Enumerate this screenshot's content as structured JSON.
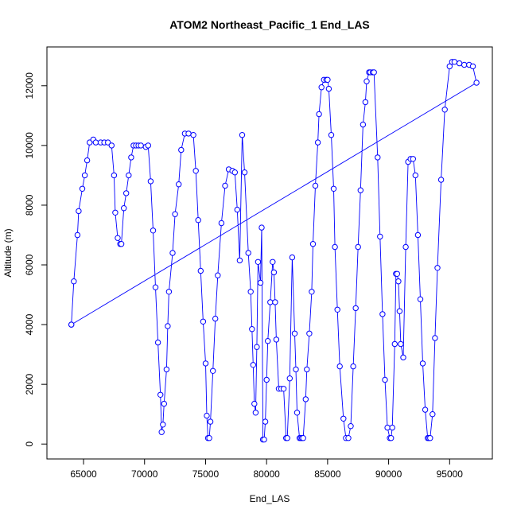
{
  "chart_data": {
    "type": "line",
    "title": "ATOM2 Northeast_Pacific_1 End_LAS",
    "xlabel": "End_LAS",
    "ylabel": "Altitude (m)",
    "xlim": [
      62000,
      98500
    ],
    "ylim": [
      -500,
      13300
    ],
    "xticks": [
      65000,
      70000,
      75000,
      80000,
      85000,
      90000,
      95000
    ],
    "yticks": [
      0,
      2000,
      4000,
      6000,
      8000,
      10000,
      12000
    ],
    "series_color": "#0000ff",
    "series": [
      {
        "points": [
          [
            64000,
            4000
          ],
          [
            64200,
            5450
          ],
          [
            64500,
            7000
          ],
          [
            64600,
            7800
          ],
          [
            64900,
            8550
          ],
          [
            65100,
            9000
          ],
          [
            65300,
            9500
          ],
          [
            65500,
            10100
          ],
          [
            65800,
            10200
          ],
          [
            66000,
            10100
          ],
          [
            66400,
            10100
          ],
          [
            66700,
            10100
          ],
          [
            67000,
            10100
          ],
          [
            67300,
            10000
          ],
          [
            67500,
            9000
          ],
          [
            67600,
            7750
          ],
          [
            67800,
            6900
          ],
          [
            68000,
            6700
          ],
          [
            68100,
            6700
          ],
          [
            68300,
            7900
          ],
          [
            68500,
            8400
          ],
          [
            68700,
            9000
          ],
          [
            68900,
            9600
          ],
          [
            69100,
            10000
          ],
          [
            69300,
            10000
          ],
          [
            69500,
            10000
          ],
          [
            69700,
            10000
          ],
          [
            70100,
            9950
          ],
          [
            70300,
            10000
          ],
          [
            70500,
            8800
          ],
          [
            70700,
            7150
          ],
          [
            70900,
            5250
          ],
          [
            71100,
            3400
          ],
          [
            71300,
            1650
          ],
          [
            71400,
            400
          ],
          [
            71500,
            650
          ],
          [
            71600,
            1350
          ],
          [
            71800,
            2500
          ],
          [
            71900,
            3950
          ],
          [
            72000,
            5100
          ],
          [
            72300,
            6400
          ],
          [
            72500,
            7700
          ],
          [
            72800,
            8700
          ],
          [
            73000,
            9850
          ],
          [
            73300,
            10400
          ],
          [
            73600,
            10400
          ],
          [
            74000,
            10350
          ],
          [
            74200,
            9150
          ],
          [
            74400,
            7500
          ],
          [
            74600,
            5800
          ],
          [
            74800,
            4100
          ],
          [
            75000,
            2700
          ],
          [
            75100,
            950
          ],
          [
            75200,
            200
          ],
          [
            75300,
            200
          ],
          [
            75400,
            750
          ],
          [
            75600,
            2450
          ],
          [
            75800,
            4200
          ],
          [
            76000,
            5650
          ],
          [
            76300,
            7400
          ],
          [
            76600,
            8650
          ],
          [
            76900,
            9200
          ],
          [
            77200,
            9150
          ],
          [
            77400,
            9100
          ],
          [
            77600,
            7850
          ],
          [
            77800,
            6150
          ],
          [
            78000,
            10350
          ],
          [
            78200,
            9100
          ],
          [
            78500,
            6400
          ],
          [
            78700,
            5100
          ],
          [
            78800,
            3850
          ],
          [
            78900,
            2650
          ],
          [
            79000,
            1350
          ],
          [
            79100,
            1050
          ],
          [
            79200,
            3250
          ],
          [
            79300,
            6100
          ],
          [
            79500,
            5400
          ],
          [
            79600,
            7250
          ],
          [
            79700,
            150
          ],
          [
            79800,
            150
          ],
          [
            79900,
            750
          ],
          [
            80000,
            2150
          ],
          [
            80100,
            3450
          ],
          [
            80300,
            4750
          ],
          [
            80500,
            6100
          ],
          [
            80600,
            5750
          ],
          [
            80700,
            4750
          ],
          [
            80800,
            3500
          ],
          [
            81000,
            1850
          ],
          [
            81200,
            1850
          ],
          [
            81400,
            1850
          ],
          [
            81600,
            200
          ],
          [
            81700,
            200
          ],
          [
            81900,
            2200
          ],
          [
            82100,
            6250
          ],
          [
            82300,
            3700
          ],
          [
            82400,
            2500
          ],
          [
            82500,
            1050
          ],
          [
            82700,
            200
          ],
          [
            82800,
            200
          ],
          [
            82900,
            200
          ],
          [
            83000,
            200
          ],
          [
            83200,
            1500
          ],
          [
            83300,
            2500
          ],
          [
            83500,
            3700
          ],
          [
            83700,
            5100
          ],
          [
            83800,
            6700
          ],
          [
            84000,
            8650
          ],
          [
            84200,
            10100
          ],
          [
            84300,
            11050
          ],
          [
            84500,
            11950
          ],
          [
            84700,
            12200
          ],
          [
            84900,
            12200
          ],
          [
            85000,
            12200
          ],
          [
            85100,
            11900
          ],
          [
            85300,
            10350
          ],
          [
            85500,
            8550
          ],
          [
            85600,
            6600
          ],
          [
            85800,
            4500
          ],
          [
            86000,
            2600
          ],
          [
            86300,
            850
          ],
          [
            86500,
            200
          ],
          [
            86700,
            200
          ],
          [
            86900,
            600
          ],
          [
            87100,
            2600
          ],
          [
            87300,
            4550
          ],
          [
            87500,
            6600
          ],
          [
            87700,
            8500
          ],
          [
            87900,
            10700
          ],
          [
            88100,
            11450
          ],
          [
            88200,
            12150
          ],
          [
            88400,
            12450
          ],
          [
            88500,
            12450
          ],
          [
            88700,
            12450
          ],
          [
            88800,
            12450
          ],
          [
            89100,
            9600
          ],
          [
            89300,
            6950
          ],
          [
            89500,
            4350
          ],
          [
            89700,
            2150
          ],
          [
            89900,
            550
          ],
          [
            90100,
            200
          ],
          [
            90200,
            200
          ],
          [
            90300,
            550
          ],
          [
            90500,
            3350
          ],
          [
            90600,
            5700
          ],
          [
            90700,
            5700
          ],
          [
            90800,
            5450
          ],
          [
            90900,
            4450
          ],
          [
            91000,
            3350
          ],
          [
            91200,
            2900
          ],
          [
            91400,
            6600
          ],
          [
            91600,
            9450
          ],
          [
            91800,
            9550
          ],
          [
            92000,
            9550
          ],
          [
            92200,
            9000
          ],
          [
            92400,
            7000
          ],
          [
            92600,
            4850
          ],
          [
            92800,
            2700
          ],
          [
            93000,
            1150
          ],
          [
            93200,
            200
          ],
          [
            93300,
            200
          ],
          [
            93400,
            200
          ],
          [
            93600,
            1000
          ],
          [
            93800,
            3550
          ],
          [
            94000,
            5900
          ],
          [
            94300,
            8850
          ],
          [
            94600,
            11200
          ],
          [
            95000,
            12650
          ],
          [
            95200,
            12800
          ],
          [
            95400,
            12800
          ],
          [
            95800,
            12750
          ],
          [
            96200,
            12700
          ],
          [
            96600,
            12700
          ],
          [
            96900,
            12650
          ],
          [
            97200,
            12100
          ],
          [
            64000,
            4000
          ]
        ]
      }
    ]
  }
}
